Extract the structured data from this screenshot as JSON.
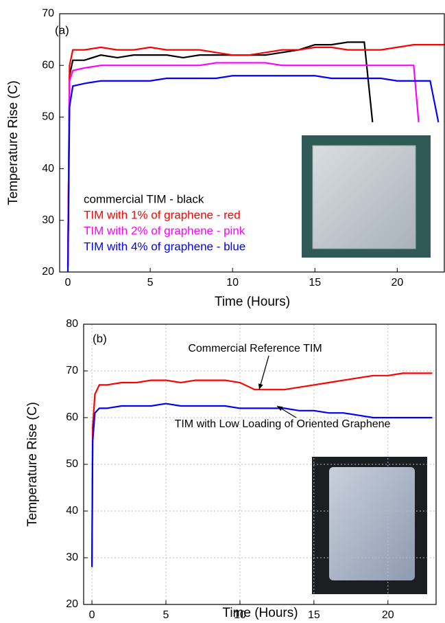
{
  "chart_data": [
    {
      "type": "line",
      "panel_label": "(a)",
      "x_label": "Time (Hours)",
      "y_label": "Temperature Rise (C)",
      "xlim": [
        -0.5,
        22.9
      ],
      "ylim": [
        20,
        70
      ],
      "xticks": [
        0,
        5,
        10,
        15,
        20
      ],
      "yticks": [
        20,
        30,
        40,
        50,
        60,
        70
      ],
      "grid": false,
      "x": [
        0,
        0.1,
        0.3,
        1,
        2,
        3,
        4,
        5,
        6,
        7,
        8,
        9,
        10,
        11,
        12,
        13,
        14,
        15,
        16,
        17,
        18,
        18.5,
        19,
        20,
        21,
        21.3,
        22,
        22.5,
        22.9
      ],
      "series": [
        {
          "name": "commercial TIM - black",
          "color": "#000000",
          "values": [
            21,
            58,
            61,
            61,
            62,
            61.5,
            62,
            62,
            62,
            61.5,
            62,
            62,
            62,
            62,
            62,
            62.5,
            63,
            64,
            64,
            64.5,
            64.5,
            49,
            null,
            null,
            null,
            null,
            null,
            null,
            null
          ]
        },
        {
          "name": "TIM with 1% of graphene - red",
          "color": "#ff0000",
          "values": [
            22,
            60,
            63,
            63,
            63.5,
            63,
            63,
            63.5,
            63,
            63,
            63,
            62.5,
            62,
            62,
            62.5,
            63,
            63,
            63.5,
            63.5,
            63,
            63,
            63,
            63,
            63.5,
            64,
            64,
            64,
            64,
            64
          ]
        },
        {
          "name": "TIM with 2% of graphene - pink",
          "color": "#ff00ff",
          "values": [
            21,
            57,
            59,
            59.5,
            60,
            60,
            60,
            60,
            60,
            60,
            60,
            60.5,
            60.5,
            60.5,
            60.5,
            60,
            60,
            60,
            60,
            60,
            60,
            60,
            60,
            60,
            60,
            49,
            null,
            null,
            null
          ]
        },
        {
          "name": "TIM with 4% of graphene - blue",
          "color": "#0000ff",
          "values": [
            20,
            52,
            56,
            56.5,
            57,
            57,
            57,
            57,
            57.5,
            57.5,
            57.5,
            57.5,
            58,
            58,
            58,
            58,
            58,
            58,
            57.5,
            57.5,
            57.5,
            57.5,
            57.5,
            57,
            57,
            57,
            57,
            49,
            null
          ]
        }
      ]
    },
    {
      "type": "line",
      "panel_label": "(b)",
      "x_label": "Time (Hours)",
      "y_label": "Temperature Rise (C)",
      "xlim": [
        -0.56,
        23.3
      ],
      "ylim": [
        20,
        80
      ],
      "xticks": [
        0,
        5,
        10,
        15,
        20
      ],
      "yticks": [
        20,
        30,
        40,
        50,
        60,
        70,
        80
      ],
      "grid": true,
      "x": [
        0,
        0.05,
        0.2,
        0.5,
        1,
        2,
        3,
        4,
        5,
        6,
        7,
        8,
        9,
        10,
        11,
        12,
        13,
        14,
        15,
        16,
        17,
        18,
        19,
        20,
        21,
        22,
        23
      ],
      "series": [
        {
          "color": "#ff0000",
          "values": [
            28,
            58,
            65,
            67,
            67,
            67.5,
            67.5,
            68,
            68,
            67.5,
            68,
            68,
            68,
            67.5,
            66,
            66,
            66,
            66.5,
            67,
            67.5,
            68,
            68.5,
            69,
            69,
            69.5,
            69.5,
            69.5
          ]
        },
        {
          "color": "#0000ff",
          "values": [
            28,
            55,
            61,
            62,
            62,
            62.5,
            62.5,
            62.5,
            63,
            62.5,
            62.5,
            62.5,
            62.5,
            62,
            62,
            62,
            62,
            61.5,
            61.5,
            61,
            61,
            60.5,
            60,
            60,
            60,
            60,
            60
          ]
        }
      ],
      "annotations": [
        {
          "text": "Commercial Reference TIM",
          "x": 11.3,
          "y": 66
        },
        {
          "text": "TIM with Low Loading of Oriented Graphene",
          "x": 12.5,
          "y": 62.5
        }
      ]
    }
  ]
}
